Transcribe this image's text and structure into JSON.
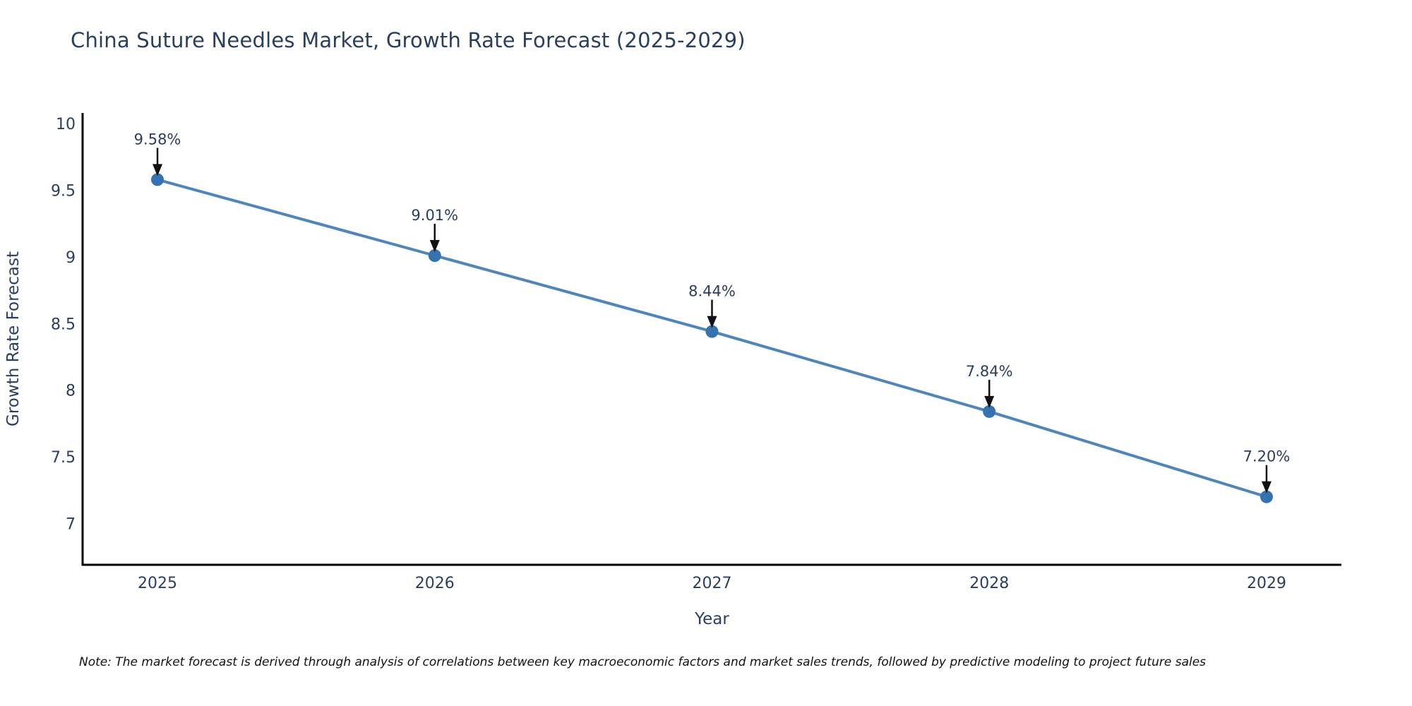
{
  "title": "China Suture Needles Market, Growth Rate Forecast (2025-2029)",
  "note": "Note: The market forecast is derived through analysis of correlations between key macroeconomic factors and market sales trends, followed by predictive modeling to project future sales",
  "chart_data": {
    "type": "line",
    "title": "China Suture Needles Market, Growth Rate Forecast (2025-2029)",
    "xlabel": "Year",
    "ylabel": "Growth Rate Forecast",
    "x": [
      2025,
      2026,
      2027,
      2028,
      2029
    ],
    "values": [
      9.58,
      9.01,
      8.44,
      7.84,
      7.2
    ],
    "point_labels": [
      "9.58%",
      "9.01%",
      "8.44%",
      "7.84%",
      "7.20%"
    ],
    "series_name": "Growth Rate Forecast",
    "xticks": [
      2025,
      2026,
      2027,
      2028,
      2029
    ],
    "yticks": [
      7,
      7.5,
      8,
      8.5,
      9,
      9.5,
      10
    ],
    "xlim": [
      2024.73,
      2029.27
    ],
    "ylim": [
      6.69,
      10.08
    ],
    "grid": false,
    "legend_position": "none",
    "annotations_style": "value label with down arrow to marker",
    "colors": {
      "line": "#4d86be",
      "marker": "#3572b0",
      "axis": "#000000",
      "text": "#2a3f5f",
      "arrow": "#111111"
    }
  }
}
